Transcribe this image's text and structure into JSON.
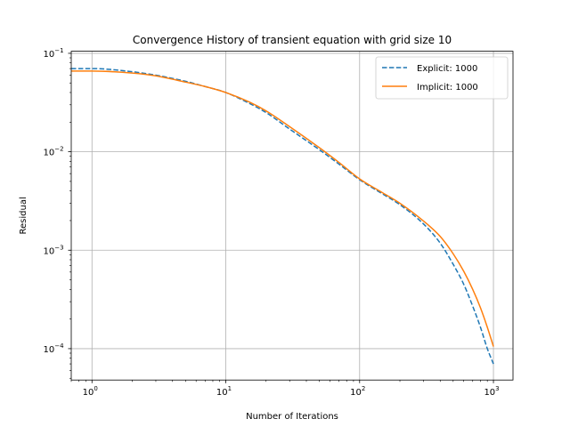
{
  "chart_data": {
    "type": "line",
    "title": "Convergence History of transient equation with grid size 10",
    "xlabel": "Number of Iterations",
    "ylabel": "Residual",
    "xscale": "log",
    "yscale": "log",
    "xlim": [
      0.7,
      1400
    ],
    "ylim": [
      4.8e-05,
      0.105
    ],
    "grid": true,
    "legend_position": "top-right",
    "x_ticks": [
      {
        "base": "10",
        "exp": "0",
        "value": 1
      },
      {
        "base": "10",
        "exp": "1",
        "value": 10
      },
      {
        "base": "10",
        "exp": "2",
        "value": 100
      },
      {
        "base": "10",
        "exp": "3",
        "value": 1000
      }
    ],
    "y_ticks": [
      {
        "base": "10",
        "exp": "−4",
        "value": 0.0001
      },
      {
        "base": "10",
        "exp": "−3",
        "value": 0.001
      },
      {
        "base": "10",
        "exp": "−2",
        "value": 0.01
      },
      {
        "base": "10",
        "exp": "−1",
        "value": 0.1
      }
    ],
    "series": [
      {
        "name": "Explicit: 1000",
        "color": "#1f77b4",
        "style": "dashed",
        "x": [
          0.7,
          1,
          2,
          3,
          5,
          7,
          10,
          15,
          20,
          30,
          50,
          70,
          100,
          150,
          200,
          300,
          400,
          500,
          600,
          700,
          800,
          900,
          1000
        ],
        "y": [
          0.07,
          0.07,
          0.065,
          0.06,
          0.052,
          0.046,
          0.04,
          0.031,
          0.025,
          0.017,
          0.0105,
          0.0075,
          0.0052,
          0.0037,
          0.0029,
          0.00185,
          0.00118,
          0.00072,
          0.00045,
          0.00027,
          0.000165,
          0.0001,
          7e-05
        ]
      },
      {
        "name": "Implicit: 1000",
        "color": "#ff7f0e",
        "style": "solid",
        "x": [
          0.7,
          1,
          2,
          3,
          5,
          7,
          10,
          15,
          20,
          30,
          50,
          70,
          100,
          150,
          200,
          300,
          400,
          500,
          600,
          700,
          800,
          900,
          1000
        ],
        "y": [
          0.066,
          0.066,
          0.063,
          0.059,
          0.051,
          0.046,
          0.04,
          0.032,
          0.026,
          0.018,
          0.011,
          0.0078,
          0.0053,
          0.0038,
          0.003,
          0.00198,
          0.00138,
          0.00092,
          0.00061,
          0.0004,
          0.00026,
          0.000165,
          0.000105
        ]
      }
    ]
  }
}
